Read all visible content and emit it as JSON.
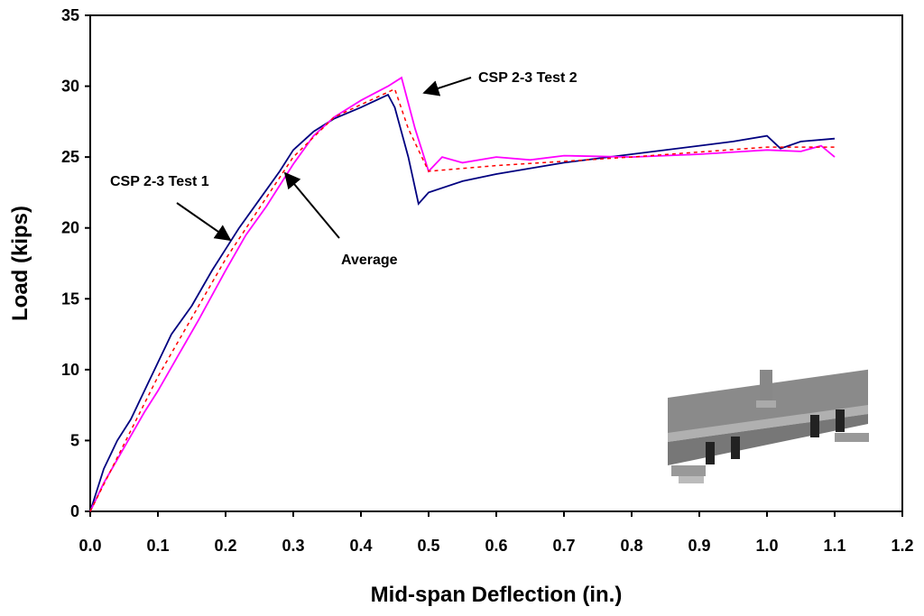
{
  "chart_data": {
    "type": "line",
    "xlabel": "Mid-span Deflection (in.)",
    "ylabel": "Load (kips)",
    "xlim": [
      0,
      1.2
    ],
    "xticks": [
      {
        "value": 0,
        "label": "0.0"
      },
      0.1,
      0.2,
      0.3,
      0.4,
      0.5,
      0.6,
      0.7,
      0.8,
      0.9,
      {
        "value": 1,
        "label": "1.0"
      },
      1.1,
      1.2
    ],
    "ylim": [
      0,
      35
    ],
    "yticks": [
      0,
      5,
      10,
      15,
      20,
      25,
      30,
      35
    ],
    "series": [
      {
        "name": "CSP 2-3 Test 1",
        "color": "#000080",
        "dash": false,
        "x": [
          0,
          0.02,
          0.04,
          0.06,
          0.08,
          0.1,
          0.12,
          0.15,
          0.18,
          0.2,
          0.22,
          0.25,
          0.28,
          0.3,
          0.33,
          0.36,
          0.4,
          0.44,
          0.45,
          0.47,
          0.485,
          0.5,
          0.55,
          0.6,
          0.7,
          0.8,
          0.9,
          0.95,
          1.0,
          1.02,
          1.05,
          1.1
        ],
        "values": [
          0,
          3,
          5,
          6.5,
          8.5,
          10.5,
          12.5,
          14.5,
          17,
          18.5,
          20,
          22,
          24,
          25.5,
          26.8,
          27.7,
          28.5,
          29.4,
          28.5,
          25,
          21.7,
          22.5,
          23.3,
          23.8,
          24.6,
          25.2,
          25.8,
          26.1,
          26.5,
          25.6,
          26.1,
          26.3
        ]
      },
      {
        "name": "CSP 2-3 Test 2",
        "color": "#ff00ff",
        "dash": false,
        "x": [
          0,
          0.02,
          0.05,
          0.08,
          0.1,
          0.13,
          0.16,
          0.2,
          0.23,
          0.26,
          0.3,
          0.33,
          0.36,
          0.4,
          0.44,
          0.46,
          0.48,
          0.5,
          0.52,
          0.55,
          0.6,
          0.65,
          0.7,
          0.8,
          0.9,
          1.0,
          1.05,
          1.08,
          1.1
        ],
        "values": [
          0,
          2,
          4.5,
          7,
          8.5,
          11,
          13.5,
          17,
          19.5,
          21.5,
          24.5,
          26.5,
          27.8,
          29,
          30,
          30.6,
          27,
          24,
          25,
          24.6,
          25,
          24.8,
          25.1,
          25,
          25.2,
          25.5,
          25.4,
          25.8,
          25
        ]
      },
      {
        "name": "Average",
        "color": "#ff0000",
        "dash": true,
        "x": [
          0,
          0.1,
          0.2,
          0.3,
          0.36,
          0.4,
          0.45,
          0.47,
          0.5,
          0.6,
          0.8,
          1.0,
          1.1
        ],
        "values": [
          0,
          9.5,
          17.8,
          25,
          27.8,
          28.7,
          29.8,
          27,
          24,
          24.4,
          25,
          25.7,
          25.7
        ]
      }
    ]
  }
}
